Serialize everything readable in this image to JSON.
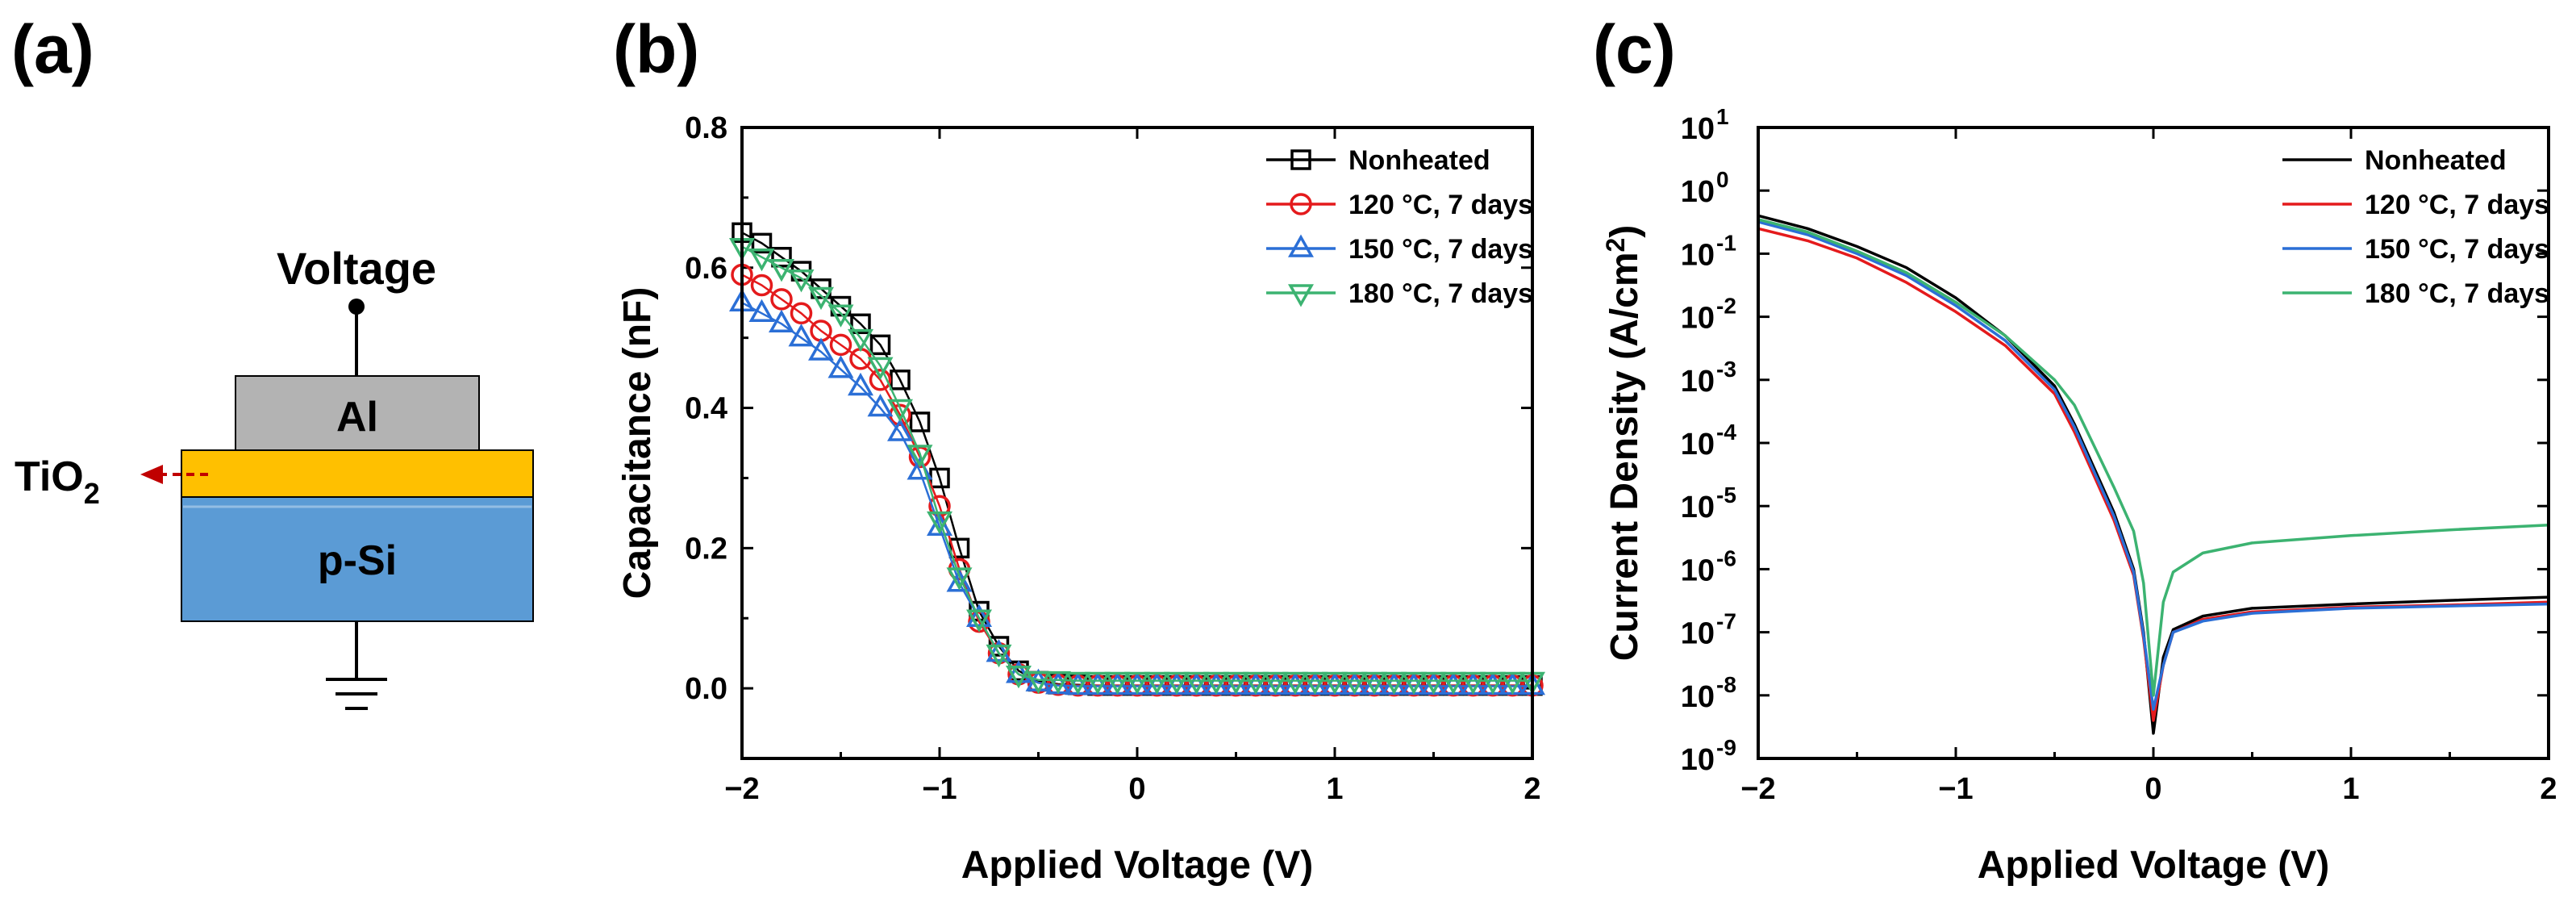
{
  "panels": {
    "a": {
      "letter": "(a)",
      "voltage_label": "Voltage",
      "al_label": "Al",
      "tio2_label": "TiO",
      "tio2_sub": "2",
      "psi_label": "p-Si",
      "colors": {
        "al": "#b3b3b3",
        "tio2": "#ffc000",
        "psi": "#5b9bd5",
        "arrow": "#c00000"
      }
    },
    "b": {
      "letter": "(b)"
    },
    "c": {
      "letter": "(c)"
    }
  },
  "chart_data": [
    {
      "id": "b",
      "type": "line",
      "xlabel": "Applied Voltage (V)",
      "ylabel": "Capacitance (nF)",
      "xlim": [
        -2,
        2
      ],
      "ylim": [
        -0.1,
        0.8
      ],
      "xticks": [
        -2,
        -1,
        0,
        1,
        2
      ],
      "xtick_labels": [
        "−2",
        "−1",
        "0",
        "1",
        "2"
      ],
      "yticks": [
        0.0,
        0.2,
        0.4,
        0.6,
        0.8
      ],
      "ytick_labels": [
        "0.0",
        "0.2",
        "0.4",
        "0.6",
        "0.8"
      ],
      "legend_position": "top-right",
      "x": [
        -2.0,
        -1.9,
        -1.8,
        -1.7,
        -1.6,
        -1.5,
        -1.4,
        -1.3,
        -1.2,
        -1.1,
        -1.0,
        -0.9,
        -0.8,
        -0.7,
        -0.6,
        -0.5,
        -0.4,
        -0.3,
        -0.2,
        -0.1,
        0.0,
        0.1,
        0.2,
        0.3,
        0.4,
        0.5,
        0.6,
        0.7,
        0.8,
        0.9,
        1.0,
        1.1,
        1.2,
        1.3,
        1.4,
        1.5,
        1.6,
        1.7,
        1.8,
        1.9,
        2.0
      ],
      "series": [
        {
          "name": "Nonheated",
          "color": "#000000",
          "marker": "square",
          "values": [
            0.65,
            0.635,
            0.615,
            0.595,
            0.57,
            0.545,
            0.52,
            0.49,
            0.44,
            0.38,
            0.3,
            0.2,
            0.11,
            0.06,
            0.025,
            0.01,
            0.006,
            0.005,
            0.004,
            0.004,
            0.004,
            0.004,
            0.004,
            0.004,
            0.004,
            0.004,
            0.004,
            0.004,
            0.004,
            0.004,
            0.004,
            0.004,
            0.004,
            0.004,
            0.004,
            0.004,
            0.004,
            0.004,
            0.004,
            0.004,
            0.004
          ]
        },
        {
          "name": "120 °C, 7 days",
          "color": "#e41a1c",
          "marker": "circle",
          "values": [
            0.59,
            0.575,
            0.555,
            0.535,
            0.51,
            0.49,
            0.47,
            0.44,
            0.39,
            0.33,
            0.26,
            0.17,
            0.095,
            0.05,
            0.02,
            0.008,
            0.005,
            0.004,
            0.004,
            0.004,
            0.004,
            0.004,
            0.004,
            0.004,
            0.004,
            0.004,
            0.004,
            0.004,
            0.004,
            0.004,
            0.004,
            0.004,
            0.004,
            0.004,
            0.004,
            0.004,
            0.004,
            0.004,
            0.004,
            0.004,
            0.004
          ]
        },
        {
          "name": "150 °C, 7 days",
          "color": "#2b6fd6",
          "marker": "triangle-up",
          "values": [
            0.55,
            0.535,
            0.52,
            0.5,
            0.48,
            0.455,
            0.43,
            0.4,
            0.365,
            0.31,
            0.23,
            0.15,
            0.1,
            0.05,
            0.02,
            0.008,
            0.004,
            0.003,
            0.003,
            0.003,
            0.003,
            0.003,
            0.003,
            0.003,
            0.003,
            0.003,
            0.003,
            0.003,
            0.003,
            0.003,
            0.003,
            0.003,
            0.003,
            0.003,
            0.003,
            0.003,
            0.003,
            0.003,
            0.003,
            0.003,
            0.003
          ]
        },
        {
          "name": "180 °C, 7 days",
          "color": "#3cb371",
          "marker": "triangle-down",
          "values": [
            0.63,
            0.615,
            0.6,
            0.585,
            0.56,
            0.535,
            0.5,
            0.46,
            0.4,
            0.335,
            0.24,
            0.16,
            0.1,
            0.05,
            0.02,
            0.012,
            0.012,
            0.011,
            0.011,
            0.011,
            0.011,
            0.011,
            0.011,
            0.011,
            0.011,
            0.011,
            0.011,
            0.011,
            0.011,
            0.011,
            0.011,
            0.011,
            0.011,
            0.011,
            0.011,
            0.011,
            0.011,
            0.011,
            0.011,
            0.011,
            0.011
          ]
        }
      ]
    },
    {
      "id": "c",
      "type": "line",
      "yscale": "log",
      "xlabel": "Applied Voltage (V)",
      "ylabel": "Current Density (A/cm",
      "ylabel_sup": "2",
      "ylabel_end": ")",
      "xlim": [
        -2,
        2
      ],
      "ylim_exp": [
        -9,
        1
      ],
      "xticks": [
        -2,
        -1,
        0,
        1,
        2
      ],
      "xtick_labels": [
        "−2",
        "−1",
        "0",
        "1",
        "2"
      ],
      "ytick_exps": [
        -9,
        -8,
        -7,
        -6,
        -5,
        -4,
        -3,
        -2,
        -1,
        0,
        1
      ],
      "ytick_base": "10",
      "ytick_exp_labels": [
        "-9",
        "-8",
        "-7",
        "-6",
        "-5",
        "-4",
        "-3",
        "-2",
        "-1",
        "0",
        "1"
      ],
      "legend_position": "top-right",
      "x": [
        -2.0,
        -1.75,
        -1.5,
        -1.25,
        -1.0,
        -0.75,
        -0.5,
        -0.4,
        -0.3,
        -0.2,
        -0.1,
        -0.05,
        0.0,
        0.05,
        0.1,
        0.25,
        0.5,
        1.0,
        1.5,
        2.0
      ],
      "series": [
        {
          "name": "Nonheated",
          "color": "#000000",
          "values": [
            0.4,
            0.25,
            0.13,
            0.06,
            0.02,
            0.005,
            0.0008,
            0.0002,
            4e-05,
            8e-06,
            1e-06,
            1e-07,
            2.5e-09,
            4e-08,
            1.1e-07,
            1.8e-07,
            2.4e-07,
            2.8e-07,
            3.2e-07,
            3.6e-07
          ]
        },
        {
          "name": "120 °C, 7 days",
          "color": "#e41a1c",
          "values": [
            0.25,
            0.16,
            0.085,
            0.035,
            0.012,
            0.0035,
            0.0006,
            0.00015,
            3e-05,
            6e-06,
            8e-07,
            8e-08,
            4e-09,
            3e-08,
            1e-07,
            1.6e-07,
            2.1e-07,
            2.5e-07,
            2.7e-07,
            3e-07
          ]
        },
        {
          "name": "150 °C, 7 days",
          "color": "#2b6fd6",
          "values": [
            0.32,
            0.2,
            0.1,
            0.045,
            0.015,
            0.0042,
            0.0007,
            0.00018,
            3.5e-05,
            7e-06,
            9e-07,
            9e-08,
            6e-09,
            3e-08,
            1e-07,
            1.5e-07,
            2e-07,
            2.4e-07,
            2.6e-07,
            2.8e-07
          ]
        },
        {
          "name": "180 °C, 7 days",
          "color": "#3cb371",
          "values": [
            0.35,
            0.22,
            0.11,
            0.05,
            0.017,
            0.005,
            0.001,
            0.0004,
            9e-05,
            2e-05,
            4e-06,
            6e-07,
            1e-08,
            3e-07,
            9e-07,
            1.8e-06,
            2.6e-06,
            3.4e-06,
            4.2e-06,
            5e-06
          ]
        }
      ]
    }
  ]
}
